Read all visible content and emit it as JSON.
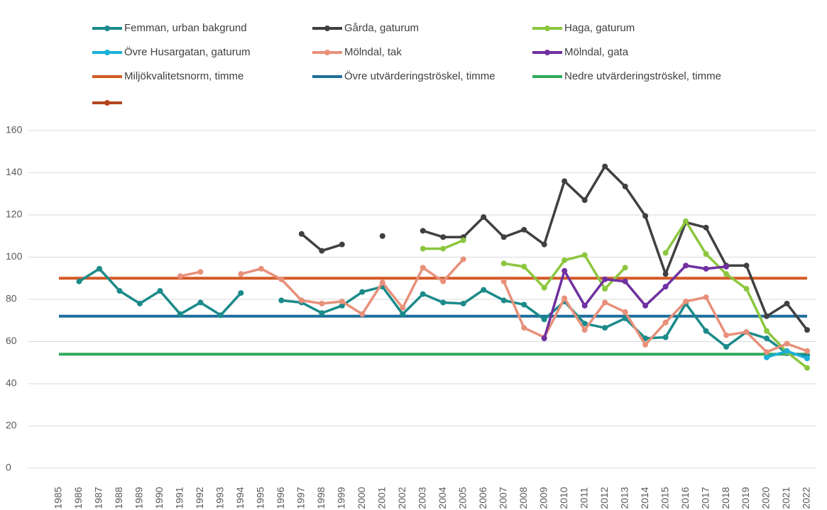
{
  "chart_data": {
    "type": "line",
    "categories": [
      "1985",
      "1986",
      "1987",
      "1988",
      "1989",
      "1990",
      "1991",
      "1992",
      "1993",
      "1994",
      "1995",
      "1996",
      "1997",
      "1998",
      "1999",
      "2000",
      "2001",
      "2002",
      "2003",
      "2004",
      "2005",
      "2006",
      "2007",
      "2008",
      "2009",
      "2010",
      "2011",
      "2012",
      "2013",
      "2014",
      "2015",
      "2016",
      "2017",
      "2018",
      "2019",
      "2020",
      "2021",
      "2022"
    ],
    "ylim": [
      0,
      160
    ],
    "yticks": [
      0,
      20,
      40,
      60,
      80,
      100,
      120,
      140,
      160
    ],
    "grid": true,
    "series": [
      {
        "name": "Femman, urban bakgrund",
        "color": "#1b8a8a",
        "markers": true,
        "values": [
          null,
          88.5,
          94.5,
          84,
          78,
          84,
          73,
          78.5,
          72.5,
          83,
          null,
          79.5,
          78.5,
          73.5,
          77,
          83.5,
          86,
          73,
          82.5,
          78.5,
          78,
          84.5,
          79.5,
          77.5,
          70.5,
          79,
          68.5,
          66.5,
          71,
          61.5,
          62,
          78,
          65,
          57.5,
          64.5,
          61.5,
          54.5,
          53.5
        ]
      },
      {
        "name": "Gårda, gaturum",
        "color": "#404040",
        "markers": true,
        "values": [
          null,
          null,
          null,
          null,
          null,
          null,
          null,
          null,
          null,
          null,
          null,
          null,
          111,
          103,
          106,
          null,
          110,
          null,
          112.5,
          109.5,
          109.5,
          119,
          109.5,
          113,
          106,
          136,
          127,
          143,
          133.5,
          119.5,
          92,
          116.5,
          114,
          96,
          96,
          72,
          78,
          65.5
        ]
      },
      {
        "name": "Haga, gaturum",
        "color": "#8cc63f",
        "markers": true,
        "values": [
          null,
          null,
          null,
          null,
          null,
          null,
          null,
          null,
          null,
          null,
          null,
          null,
          null,
          null,
          null,
          null,
          null,
          null,
          104,
          104,
          108,
          null,
          97,
          95.5,
          85.5,
          98.5,
          101,
          85,
          95,
          null,
          102,
          117,
          101.5,
          92,
          85,
          65,
          55,
          47.5
        ]
      },
      {
        "name": "Övre Husargatan, gaturum",
        "color": "#1ab0d8",
        "markers": true,
        "values": [
          null,
          null,
          null,
          null,
          null,
          null,
          null,
          null,
          null,
          null,
          null,
          null,
          null,
          null,
          null,
          null,
          null,
          null,
          null,
          null,
          null,
          null,
          null,
          null,
          null,
          null,
          null,
          null,
          null,
          null,
          null,
          null,
          null,
          null,
          null,
          52.5,
          55.5,
          52
        ]
      },
      {
        "name": "Mölndal, tak",
        "color": "#e8907a",
        "markers": true,
        "values": [
          null,
          null,
          null,
          null,
          null,
          null,
          91,
          93,
          null,
          92,
          94.5,
          89.5,
          79.5,
          78,
          79,
          73,
          88,
          76,
          95,
          88.5,
          99,
          null,
          88.5,
          66.5,
          62,
          80.5,
          65.5,
          78.5,
          74,
          58.5,
          69,
          79,
          81,
          63,
          64.5,
          55,
          59,
          55.5
        ]
      },
      {
        "name": "Mölndal, gata",
        "color": "#7030a0",
        "markers": true,
        "values": [
          null,
          null,
          null,
          null,
          null,
          null,
          null,
          null,
          null,
          null,
          null,
          null,
          null,
          null,
          null,
          null,
          null,
          null,
          null,
          null,
          null,
          null,
          null,
          null,
          61.5,
          93.5,
          77,
          89.5,
          88.5,
          77,
          86,
          96,
          94.5,
          95.5,
          null,
          null,
          null,
          null
        ]
      },
      {
        "name": "Miljökvalitetsnorm, timme",
        "color": "#d35a26",
        "markers": false,
        "values": [
          90,
          90,
          90,
          90,
          90,
          90,
          90,
          90,
          90,
          90,
          90,
          90,
          90,
          90,
          90,
          90,
          90,
          90,
          90,
          90,
          90,
          90,
          90,
          90,
          90,
          90,
          90,
          90,
          90,
          90,
          90,
          90,
          90,
          90,
          90,
          90,
          90,
          90
        ]
      },
      {
        "name": "Övre utvärderingströskel, timme",
        "color": "#1f6e9c",
        "markers": false,
        "values": [
          72,
          72,
          72,
          72,
          72,
          72,
          72,
          72,
          72,
          72,
          72,
          72,
          72,
          72,
          72,
          72,
          72,
          72,
          72,
          72,
          72,
          72,
          72,
          72,
          72,
          72,
          72,
          72,
          72,
          72,
          72,
          72,
          72,
          72,
          72,
          72,
          72,
          72
        ]
      },
      {
        "name": "Nedre utvärderingströskel, timme",
        "color": "#2eaa5c",
        "markers": false,
        "values": [
          54,
          54,
          54,
          54,
          54,
          54,
          54,
          54,
          54,
          54,
          54,
          54,
          54,
          54,
          54,
          54,
          54,
          54,
          54,
          54,
          54,
          54,
          54,
          54,
          54,
          54,
          54,
          54,
          54,
          54,
          54,
          54,
          54,
          54,
          54,
          54,
          54,
          54
        ]
      }
    ]
  }
}
